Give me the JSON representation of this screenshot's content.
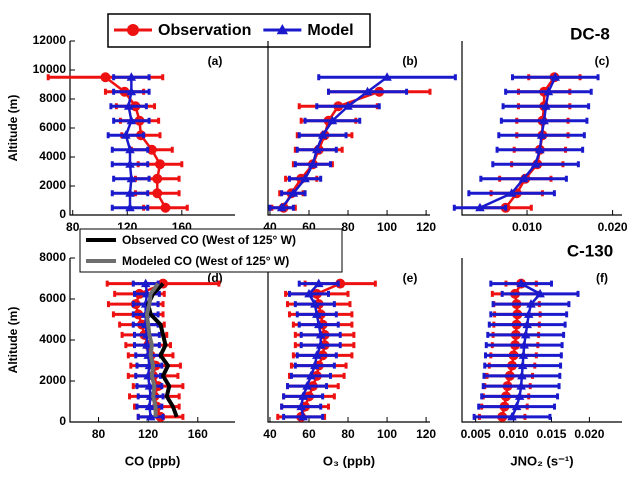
{
  "chart_data": [
    {
      "type": "line",
      "title": "(a)",
      "ylabel": "Altitude (m)",
      "xlim": [
        78,
        199
      ],
      "xticks": [
        80,
        120,
        160
      ],
      "ylim": [
        0,
        12000
      ],
      "yticks": [
        0,
        2000,
        4000,
        6000,
        8000,
        10000,
        12000
      ],
      "series": [
        {
          "name": "Observation",
          "color": "#ee1111",
          "marker": "circle",
          "altitude": [
            500,
            1500,
            2500,
            3500,
            4500,
            5500,
            6500,
            7500,
            8500,
            9500
          ],
          "values": [
            148,
            142,
            142,
            144,
            138,
            130,
            129,
            126,
            118,
            104
          ],
          "xerr": [
            16,
            16,
            16,
            16,
            15,
            14,
            14,
            14,
            14,
            42
          ]
        },
        {
          "name": "Model",
          "color": "#1a1acc",
          "marker": "triangle",
          "altitude": [
            500,
            1500,
            2500,
            3500,
            4500,
            5500,
            6500,
            7500,
            8500,
            9500
          ],
          "values": [
            122,
            122,
            123,
            122,
            122,
            119,
            123,
            121,
            123,
            123
          ],
          "xerr": [
            13,
            13,
            13,
            13,
            13,
            13,
            13,
            13,
            13,
            13
          ]
        }
      ]
    },
    {
      "type": "line",
      "title": "(b)",
      "xlim": [
        39,
        122
      ],
      "xticks": [
        40,
        60,
        80,
        100,
        120
      ],
      "ylim": [
        0,
        12000
      ],
      "series": [
        {
          "name": "Observation",
          "color": "#ee1111",
          "marker": "circle",
          "altitude": [
            500,
            1500,
            2500,
            3500,
            4500,
            5500,
            6500,
            7500,
            8500
          ],
          "values": [
            47,
            51,
            56,
            62,
            65,
            68,
            70,
            75,
            96
          ],
          "xerr": [
            6,
            6,
            8,
            10,
            12,
            14,
            14,
            20,
            26
          ]
        },
        {
          "name": "Model",
          "color": "#1a1acc",
          "marker": "triangle",
          "altitude": [
            500,
            1500,
            2500,
            3500,
            4500,
            5500,
            6500,
            7500,
            8500,
            9500
          ],
          "values": [
            46,
            52,
            58,
            62,
            64,
            67,
            72,
            80,
            90,
            100
          ],
          "xerr": [
            6,
            6,
            8,
            9,
            10,
            12,
            14,
            16,
            20,
            35
          ]
        }
      ]
    },
    {
      "type": "line",
      "title": "(c)",
      "label": "DC-8",
      "xlim": [
        0.0024,
        0.0211
      ],
      "xticks": [
        {
          "value": 0.01,
          "label": "0.010"
        },
        {
          "value": 0.02,
          "label": "0.020"
        }
      ],
      "ylim": [
        0,
        12000
      ],
      "series": [
        {
          "name": "Observation",
          "color": "#ee1111",
          "marker": "circle",
          "altitude": [
            500,
            1500,
            2500,
            3500,
            4500,
            5500,
            6500,
            7500,
            8500,
            9500
          ],
          "values": [
            0.0075,
            0.0088,
            0.0098,
            0.0112,
            0.0115,
            0.0118,
            0.0118,
            0.012,
            0.012,
            0.0132
          ],
          "xerr": [
            0.003,
            0.003,
            0.003,
            0.003,
            0.003,
            0.003,
            0.003,
            0.003,
            0.003,
            0.003
          ]
        },
        {
          "name": "Model",
          "color": "#1a1acc",
          "marker": "triangle",
          "altitude": [
            500,
            1500,
            2500,
            3500,
            4500,
            5500,
            6500,
            7500,
            8500,
            9500
          ],
          "values": [
            0.0045,
            0.0082,
            0.0096,
            0.011,
            0.0115,
            0.0117,
            0.012,
            0.0122,
            0.0125,
            0.0133
          ],
          "xerr": [
            0.003,
            0.005,
            0.005,
            0.005,
            0.005,
            0.005,
            0.005,
            0.005,
            0.005,
            0.005
          ]
        }
      ]
    },
    {
      "type": "line",
      "title": "(d)",
      "ylabel": "Altitude (m)",
      "xlabel": "CO (ppb)",
      "xlim": [
        57,
        190
      ],
      "xticks": [
        80,
        120,
        160
      ],
      "ylim": [
        0,
        8000
      ],
      "yticks": [
        0,
        2000,
        4000,
        6000,
        8000
      ],
      "series": [
        {
          "name": "Observation",
          "color": "#ee1111",
          "marker": "circle",
          "altitude": [
            250,
            750,
            1250,
            1750,
            2250,
            2750,
            3250,
            3750,
            4250,
            4750,
            5250,
            5750,
            6250,
            6750
          ],
          "values": [
            130,
            127,
            125,
            128,
            124,
            126,
            122,
            120,
            117,
            115,
            112,
            110,
            113,
            132
          ],
          "xerr": [
            18,
            18,
            20,
            20,
            20,
            20,
            18,
            18,
            18,
            18,
            20,
            22,
            20,
            45
          ]
        },
        {
          "name": "Model",
          "color": "#1a1acc",
          "marker": "triangle",
          "altitude": [
            250,
            750,
            1250,
            1750,
            2250,
            2750,
            3250,
            3750,
            4250,
            4750,
            5250,
            5750,
            6250,
            6750
          ],
          "values": [
            122,
            121,
            122,
            121,
            120,
            121,
            120,
            119,
            119,
            118,
            118,
            118,
            119,
            118
          ],
          "xerr": [
            10,
            10,
            10,
            10,
            10,
            10,
            10,
            10,
            10,
            10,
            10,
            10,
            10,
            10
          ]
        },
        {
          "name": "Observed CO (West of 125° W)",
          "color": "#000000",
          "marker": "none",
          "altitude": [
            250,
            750,
            1250,
            1750,
            2250,
            2750,
            3250,
            3750,
            4250,
            4750,
            5250,
            5750,
            6250,
            6750
          ],
          "values": [
            143,
            140,
            135,
            137,
            132,
            136,
            130,
            134,
            132,
            130,
            122,
            120,
            124,
            132
          ]
        },
        {
          "name": "Modeled CO (West of 125° W)",
          "color": "#6e6e6e",
          "marker": "none",
          "altitude": [
            250,
            750,
            1250,
            1750,
            2250,
            2750,
            3250,
            3750,
            4250,
            4750,
            5250,
            5750,
            6250,
            6750
          ],
          "values": [
            126,
            126,
            124,
            125,
            123,
            124,
            122,
            123,
            121,
            120,
            119,
            121,
            122,
            128
          ]
        }
      ]
    },
    {
      "type": "line",
      "title": "(e)",
      "xlabel": "O₃ (ppb)",
      "xlim": [
        39,
        122
      ],
      "xticks": [
        40,
        60,
        80,
        100,
        120
      ],
      "ylim": [
        0,
        8000
      ],
      "series": [
        {
          "name": "Observation",
          "color": "#ee1111",
          "marker": "circle",
          "altitude": [
            250,
            750,
            1250,
            1750,
            2250,
            2750,
            3250,
            3750,
            4250,
            4750,
            5250,
            5750,
            6250,
            6750
          ],
          "values": [
            56,
            58,
            60,
            62,
            64,
            65,
            67,
            68,
            68,
            67,
            66,
            65,
            64,
            76
          ],
          "xerr": [
            12,
            12,
            13,
            13,
            14,
            14,
            15,
            15,
            15,
            15,
            16,
            16,
            16,
            18
          ]
        },
        {
          "name": "Model",
          "color": "#1a1acc",
          "marker": "triangle",
          "altitude": [
            250,
            750,
            1250,
            1750,
            2250,
            2750,
            3250,
            3750,
            4250,
            4750,
            5250,
            5750,
            6250,
            6750
          ],
          "values": [
            57,
            56,
            57,
            59,
            61,
            63,
            64,
            66,
            66,
            65,
            64,
            63,
            60,
            65
          ],
          "xerr": [
            10,
            10,
            10,
            10,
            10,
            10,
            10,
            10,
            10,
            10,
            10,
            10,
            10,
            10
          ]
        }
      ]
    },
    {
      "type": "line",
      "title": "(f)",
      "label": "C-130",
      "xlabel": "JNO₂ (s⁻¹)",
      "xlim": [
        0.0032,
        0.0243
      ],
      "xticks": [
        {
          "value": 0.005,
          "label": "0.005"
        },
        {
          "value": 0.01,
          "label": "0.010"
        },
        {
          "value": 0.015,
          "label": "0.015"
        },
        {
          "value": 0.02,
          "label": "0.020"
        }
      ],
      "ylim": [
        0,
        8000
      ],
      "series": [
        {
          "name": "Observation",
          "color": "#ee1111",
          "marker": "circle",
          "altitude": [
            250,
            750,
            1250,
            1750,
            2250,
            2750,
            3250,
            3750,
            4250,
            4750,
            5250,
            5750,
            6250,
            6750
          ],
          "values": [
            0.0085,
            0.0088,
            0.009,
            0.0092,
            0.0095,
            0.0098,
            0.01,
            0.0102,
            0.0103,
            0.0104,
            0.0105,
            0.0104,
            0.0102,
            0.011
          ],
          "xerr": [
            0.003,
            0.003,
            0.003,
            0.003,
            0.003,
            0.003,
            0.003,
            0.003,
            0.003,
            0.003,
            0.003,
            0.003,
            0.003,
            0.002
          ]
        },
        {
          "name": "Model",
          "color": "#1a1acc",
          "marker": "triangle",
          "altitude": [
            250,
            750,
            1250,
            1750,
            2250,
            2750,
            3250,
            3750,
            4250,
            4750,
            5250,
            5750,
            6250,
            6750
          ],
          "values": [
            0.0098,
            0.0104,
            0.0108,
            0.011,
            0.0111,
            0.0112,
            0.0113,
            0.0114,
            0.0116,
            0.0118,
            0.012,
            0.0123,
            0.0135,
            0.011
          ],
          "xerr": [
            0.005,
            0.005,
            0.005,
            0.005,
            0.005,
            0.005,
            0.005,
            0.005,
            0.005,
            0.005,
            0.005,
            0.005,
            0.005,
            0.004
          ]
        }
      ]
    }
  ]
}
